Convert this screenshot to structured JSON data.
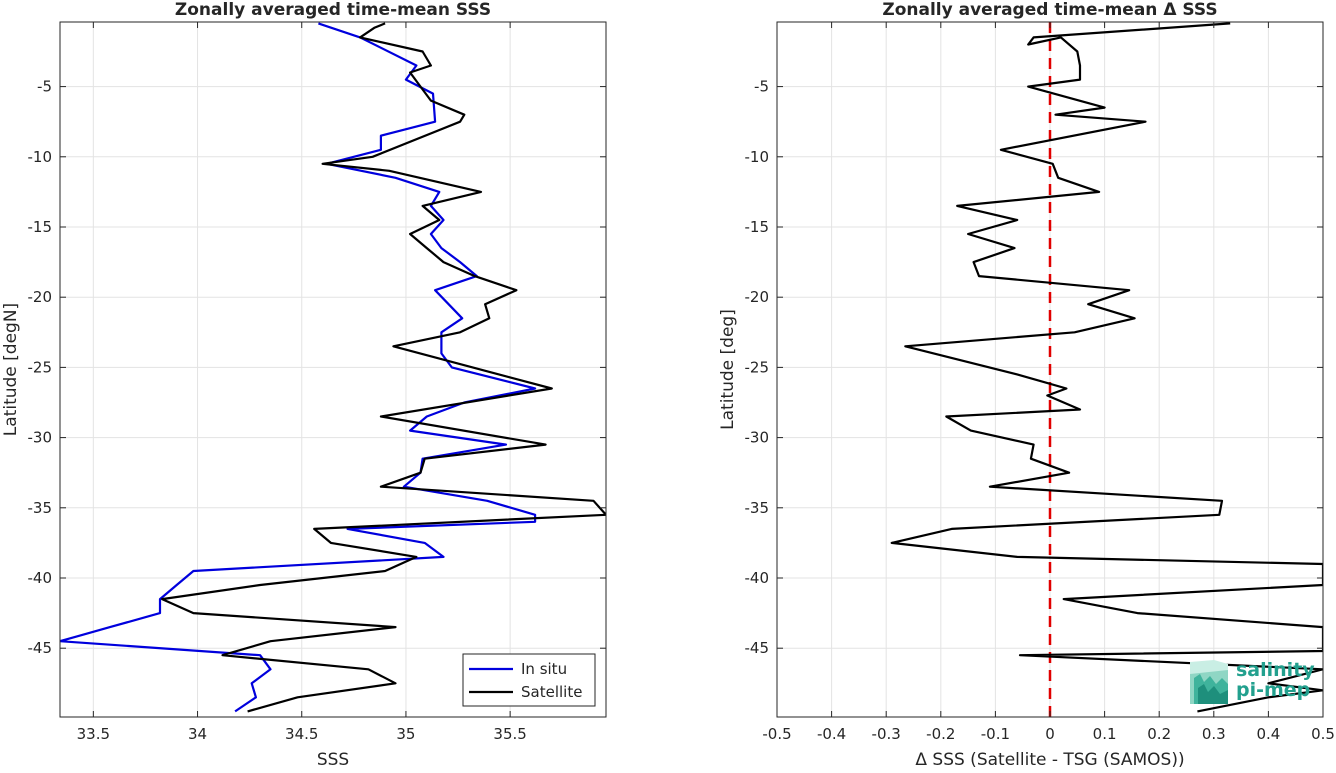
{
  "charts": [
    {
      "type": "line",
      "title": "Zonally averaged time-mean SSS",
      "xlabel": "SSS",
      "ylabel": "Latitude [degN]",
      "xlim": [
        33.34,
        35.96
      ],
      "ylim": [
        -49.9,
        -0.4
      ],
      "xticks": [
        33.5,
        34,
        34.5,
        35,
        35.5
      ],
      "xtick_labels": [
        "33.5",
        "34",
        "34.5",
        "35",
        "35.5"
      ],
      "yticks": [
        -5,
        -10,
        -15,
        -20,
        -25,
        -30,
        -35,
        -40,
        -45
      ],
      "ytick_labels": [
        "-5",
        "-10",
        "-15",
        "-20",
        "-25",
        "-30",
        "-35",
        "-40",
        "-45"
      ],
      "grid": true,
      "legend": "bottom-right",
      "series": [
        {
          "name": "In situ",
          "color": "#0000dd",
          "points": [
            [
              34.58,
              -0.5
            ],
            [
              34.78,
              -1.5
            ],
            [
              35.05,
              -3.5
            ],
            [
              35.0,
              -4.5
            ],
            [
              35.13,
              -5.5
            ],
            [
              35.14,
              -7.5
            ],
            [
              34.88,
              -8.5
            ],
            [
              34.88,
              -9.5
            ],
            [
              34.62,
              -10.5
            ],
            [
              34.95,
              -11.5
            ],
            [
              35.16,
              -12.5
            ],
            [
              35.12,
              -13.5
            ],
            [
              35.18,
              -14.5
            ],
            [
              35.12,
              -15.5
            ],
            [
              35.17,
              -16.5
            ],
            [
              35.26,
              -17.5
            ],
            [
              35.34,
              -18.5
            ],
            [
              35.14,
              -19.5
            ],
            [
              35.27,
              -21.5
            ],
            [
              35.17,
              -22.5
            ],
            [
              35.17,
              -24.0
            ],
            [
              35.22,
              -25.0
            ],
            [
              35.62,
              -26.5
            ],
            [
              35.28,
              -27.5
            ],
            [
              35.1,
              -28.5
            ],
            [
              35.02,
              -29.5
            ],
            [
              35.48,
              -30.5
            ],
            [
              35.08,
              -31.5
            ],
            [
              35.07,
              -32.5
            ],
            [
              34.99,
              -33.5
            ],
            [
              35.39,
              -34.5
            ],
            [
              35.62,
              -35.5
            ],
            [
              35.62,
              -36.0
            ],
            [
              34.72,
              -36.5
            ],
            [
              35.09,
              -37.5
            ],
            [
              35.18,
              -38.5
            ],
            [
              33.98,
              -39.5
            ],
            [
              33.9,
              -40.5
            ],
            [
              33.82,
              -41.5
            ],
            [
              33.82,
              -42.5
            ],
            [
              33.58,
              -43.5
            ],
            [
              33.34,
              -44.5
            ],
            [
              34.3,
              -45.5
            ],
            [
              34.35,
              -46.5
            ],
            [
              34.26,
              -47.5
            ],
            [
              34.28,
              -48.5
            ],
            [
              34.18,
              -49.5
            ]
          ]
        },
        {
          "name": "Satellite",
          "color": "#000000",
          "points": [
            [
              34.9,
              -0.5
            ],
            [
              34.85,
              -0.8
            ],
            [
              34.78,
              -1.5
            ],
            [
              35.08,
              -2.5
            ],
            [
              35.12,
              -3.5
            ],
            [
              35.02,
              -4.0
            ],
            [
              35.07,
              -5.0
            ],
            [
              35.12,
              -6.0
            ],
            [
              35.28,
              -7.0
            ],
            [
              35.26,
              -7.5
            ],
            [
              34.84,
              -10.0
            ],
            [
              34.6,
              -10.5
            ],
            [
              34.92,
              -11.0
            ],
            [
              35.36,
              -12.5
            ],
            [
              35.08,
              -13.5
            ],
            [
              35.16,
              -14.5
            ],
            [
              35.02,
              -15.5
            ],
            [
              35.1,
              -16.5
            ],
            [
              35.18,
              -17.5
            ],
            [
              35.33,
              -18.5
            ],
            [
              35.53,
              -19.5
            ],
            [
              35.38,
              -20.5
            ],
            [
              35.4,
              -21.5
            ],
            [
              35.26,
              -22.5
            ],
            [
              34.94,
              -23.5
            ],
            [
              35.7,
              -26.5
            ],
            [
              34.88,
              -28.5
            ],
            [
              35.67,
              -30.5
            ],
            [
              35.09,
              -31.5
            ],
            [
              35.07,
              -32.5
            ],
            [
              34.88,
              -33.5
            ],
            [
              35.9,
              -34.5
            ],
            [
              35.96,
              -35.5
            ],
            [
              34.56,
              -36.5
            ],
            [
              34.64,
              -37.5
            ],
            [
              35.05,
              -38.5
            ],
            [
              34.9,
              -39.5
            ],
            [
              34.3,
              -40.5
            ],
            [
              33.83,
              -41.5
            ],
            [
              33.98,
              -42.5
            ],
            [
              34.95,
              -43.5
            ],
            [
              34.35,
              -44.5
            ],
            [
              34.12,
              -45.5
            ],
            [
              34.82,
              -46.5
            ],
            [
              34.95,
              -47.5
            ],
            [
              34.48,
              -48.5
            ],
            [
              34.24,
              -49.5
            ]
          ]
        }
      ]
    },
    {
      "type": "line",
      "title": "Zonally averaged time-mean Δ SSS",
      "xlabel": "Δ SSS (Satellite - TSG (SAMOS))",
      "ylabel": "Latitude [deg]",
      "xlim": [
        -0.5,
        0.5
      ],
      "ylim": [
        -49.9,
        -0.4
      ],
      "xticks": [
        -0.5,
        -0.4,
        -0.3,
        -0.2,
        -0.1,
        0,
        0.1,
        0.2,
        0.3,
        0.4,
        0.5
      ],
      "xtick_labels": [
        "-0.5",
        "-0.4",
        "-0.3",
        "-0.2",
        "-0.1",
        "0",
        "0.1",
        "0.2",
        "0.3",
        "0.4",
        "0.5"
      ],
      "yticks": [
        -5,
        -10,
        -15,
        -20,
        -25,
        -30,
        -35,
        -40,
        -45
      ],
      "ytick_labels": [
        "-5",
        "-10",
        "-15",
        "-20",
        "-25",
        "-30",
        "-35",
        "-40",
        "-45"
      ],
      "grid": true,
      "reference_line": {
        "x": 0,
        "color": "#e00000",
        "style": "dashed"
      },
      "series": [
        {
          "color": "#000000",
          "points": [
            [
              0.33,
              -0.5
            ],
            [
              -0.03,
              -1.5
            ],
            [
              -0.04,
              -2.0
            ],
            [
              0.02,
              -1.5
            ],
            [
              0.05,
              -2.5
            ],
            [
              0.055,
              -3.5
            ],
            [
              0.055,
              -4.5
            ],
            [
              -0.04,
              -5.0
            ],
            [
              0.1,
              -6.5
            ],
            [
              0.01,
              -7.0
            ],
            [
              0.175,
              -7.5
            ],
            [
              -0.09,
              -9.5
            ],
            [
              0.005,
              -10.5
            ],
            [
              0.015,
              -11.5
            ],
            [
              0.09,
              -12.5
            ],
            [
              -0.17,
              -13.5
            ],
            [
              -0.06,
              -14.5
            ],
            [
              -0.15,
              -15.5
            ],
            [
              -0.065,
              -16.5
            ],
            [
              -0.14,
              -17.5
            ],
            [
              -0.13,
              -18.5
            ],
            [
              0.145,
              -19.5
            ],
            [
              0.07,
              -20.5
            ],
            [
              0.155,
              -21.5
            ],
            [
              0.045,
              -22.5
            ],
            [
              -0.265,
              -23.5
            ],
            [
              -0.06,
              -25.5
            ],
            [
              0.03,
              -26.5
            ],
            [
              -0.005,
              -27.0
            ],
            [
              0.055,
              -28.0
            ],
            [
              -0.19,
              -28.5
            ],
            [
              -0.145,
              -29.5
            ],
            [
              -0.03,
              -30.5
            ],
            [
              -0.035,
              -31.5
            ],
            [
              0.035,
              -32.5
            ],
            [
              -0.11,
              -33.5
            ],
            [
              0.315,
              -34.5
            ],
            [
              0.31,
              -35.5
            ],
            [
              -0.18,
              -36.5
            ],
            [
              -0.29,
              -37.5
            ],
            [
              -0.06,
              -38.5
            ],
            [
              0.5,
              -39.0
            ],
            [
              0.5,
              -40.5
            ],
            [
              0.025,
              -41.5
            ],
            [
              0.16,
              -42.5
            ],
            [
              0.5,
              -43.5
            ],
            [
              0.5,
              -45.2
            ],
            [
              -0.055,
              -45.5
            ],
            [
              0.5,
              -46.5
            ],
            [
              0.4,
              -47.5
            ],
            [
              0.5,
              -48.0
            ],
            [
              0.4,
              -48.5
            ],
            [
              0.27,
              -49.5
            ]
          ]
        }
      ]
    }
  ],
  "legend_items": [
    "In situ",
    "Satellite"
  ],
  "logo": {
    "line1": "salinity",
    "line2": "pi-mep"
  }
}
